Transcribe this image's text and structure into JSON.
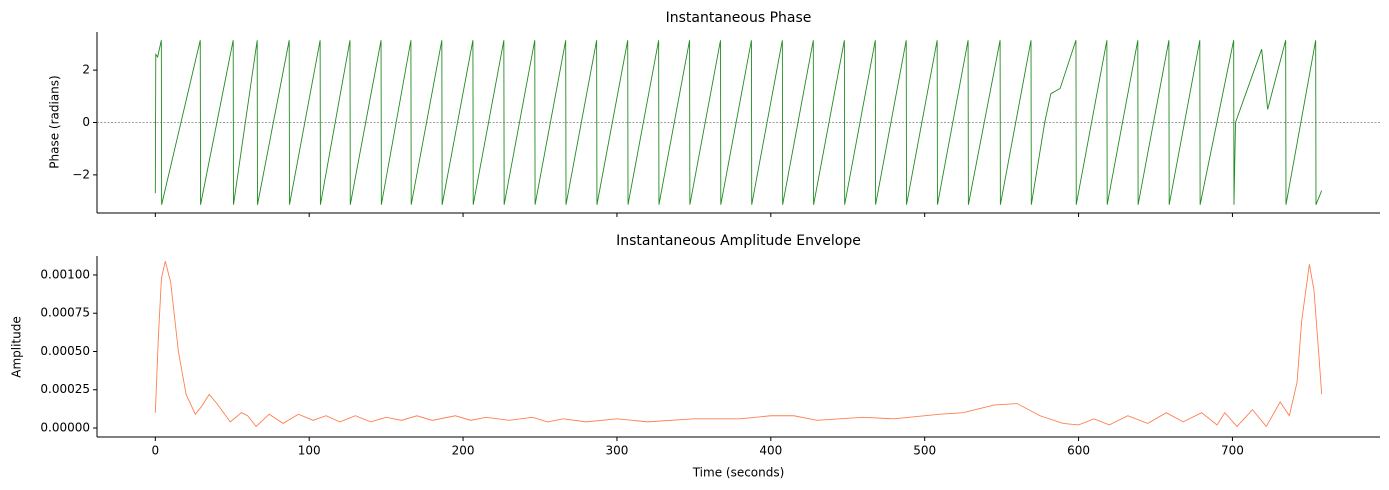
{
  "chart_data": [
    {
      "type": "line",
      "title": "Instantaneous Phase",
      "y_label": "Phase (radians)",
      "color": "#228b22",
      "x": [
        0,
        0.3,
        1.5,
        3.9,
        4.1,
        29.2,
        29.4,
        50.6,
        50.8,
        66.2,
        66.4,
        87.0,
        87.2,
        107.1,
        107.3,
        126.5,
        126.7,
        146.7,
        146.9,
        166.1,
        166.3,
        186.2,
        186.4,
        206.4,
        206.6,
        226.5,
        226.7,
        246.6,
        246.8,
        266.7,
        266.9,
        286.8,
        287.0,
        307.0,
        307.2,
        327.1,
        327.3,
        347.2,
        347.4,
        367.3,
        367.5,
        387.4,
        387.6,
        407.5,
        407.7,
        427.6,
        427.8,
        447.8,
        448.0,
        467.9,
        468.1,
        488.0,
        488.2,
        508.1,
        508.3,
        528.2,
        528.4,
        549.0,
        549.2,
        569.1,
        569.3,
        578,
        582,
        588,
        598.3,
        598.5,
        618.4,
        618.6,
        638.5,
        638.7,
        658.7,
        658.9,
        678.8,
        679.0,
        700.8,
        701.0,
        702,
        719,
        722.9,
        734.6,
        734.8,
        754.1,
        754.3,
        758
      ],
      "values": [
        -2.7,
        2.6,
        2.5,
        3.14,
        -3.14,
        3.14,
        -3.14,
        3.14,
        -3.14,
        3.14,
        -3.14,
        3.14,
        -3.14,
        3.14,
        -3.14,
        3.14,
        -3.14,
        3.14,
        -3.14,
        3.14,
        -3.14,
        3.14,
        -3.14,
        3.14,
        -3.14,
        3.14,
        -3.14,
        3.14,
        -3.14,
        3.14,
        -3.14,
        3.14,
        -3.14,
        3.14,
        -3.14,
        3.14,
        -3.14,
        3.14,
        -3.14,
        3.14,
        -3.14,
        3.14,
        -3.14,
        3.14,
        -3.14,
        3.14,
        -3.14,
        3.14,
        -3.14,
        3.14,
        -3.14,
        3.14,
        -3.14,
        3.14,
        -3.14,
        3.14,
        -3.14,
        3.14,
        -3.14,
        3.14,
        -3.14,
        0,
        1.1,
        1.3,
        3.14,
        -3.14,
        3.14,
        -3.14,
        3.14,
        -3.14,
        3.14,
        -3.14,
        3.14,
        -3.14,
        3.14,
        -3.14,
        0,
        2.8,
        0.5,
        3.14,
        -3.14,
        3.14,
        -3.14,
        -2.6
      ],
      "xlim": [
        -37.9,
        795.9
      ],
      "ylim": [
        -3.456,
        3.456
      ],
      "yticks": [
        {
          "value": -2,
          "label": "−2"
        },
        0,
        2
      ],
      "hline": 0
    },
    {
      "type": "line",
      "title": "Instantaneous Amplitude Envelope",
      "x_label": "Time (seconds)",
      "y_label": "Amplitude",
      "color": "#ff7f50",
      "x": [
        0,
        2,
        4,
        6.5,
        10,
        15,
        20,
        26,
        30,
        35,
        40,
        48.7,
        56,
        60,
        65.5,
        74,
        83,
        93,
        102.5,
        111,
        120,
        130,
        140,
        150,
        160,
        170,
        180,
        195,
        205,
        215,
        230,
        245,
        255,
        265,
        280,
        300,
        320,
        350,
        380,
        400,
        415,
        430,
        460,
        480,
        510,
        525,
        545,
        560,
        575,
        590,
        600,
        610,
        620,
        632,
        645,
        657,
        668,
        680,
        690,
        695,
        703,
        713,
        722,
        731,
        737,
        742,
        745,
        750,
        753,
        756,
        758
      ],
      "values": [
        0.0001,
        0.0006,
        0.00098,
        0.00109,
        0.00095,
        0.0005,
        0.00022,
        9e-05,
        0.00014,
        0.00022,
        0.00016,
        4e-05,
        0.0001,
        8e-05,
        1e-05,
        9e-05,
        3e-05,
        9e-05,
        5e-05,
        8e-05,
        4e-05,
        8e-05,
        4e-05,
        7e-05,
        5e-05,
        8e-05,
        5e-05,
        8e-05,
        5e-05,
        7e-05,
        5e-05,
        7e-05,
        4e-05,
        6e-05,
        4e-05,
        6e-05,
        4e-05,
        6e-05,
        6e-05,
        8e-05,
        8e-05,
        5e-05,
        7e-05,
        6e-05,
        9e-05,
        0.0001,
        0.00015,
        0.00016,
        8e-05,
        3e-05,
        2e-05,
        6e-05,
        2e-05,
        8e-05,
        3e-05,
        0.0001,
        4e-05,
        0.0001,
        2e-05,
        0.0001,
        1e-05,
        0.00012,
        1e-05,
        0.00017,
        8e-05,
        0.0003,
        0.0007,
        0.00107,
        0.0009,
        0.0005,
        0.00022
      ],
      "xlim": [
        -37.9,
        795.9
      ],
      "ylim": [
        -5.88e-05,
        0.001124
      ],
      "xticks": [
        0,
        100,
        200,
        300,
        400,
        500,
        600,
        700
      ],
      "yticks": [
        {
          "value": 0,
          "label": "0.00000"
        },
        {
          "value": 0.00025,
          "label": "0.00025"
        },
        {
          "value": 0.0005,
          "label": "0.00050"
        },
        {
          "value": 0.00075,
          "label": "0.00075"
        },
        {
          "value": 0.001,
          "label": "0.00100"
        }
      ]
    }
  ]
}
